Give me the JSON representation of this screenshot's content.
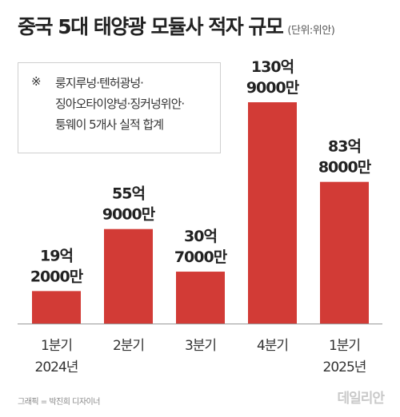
{
  "header": {
    "title": "중국 5대 태양광 모듈사 적자 규모",
    "unit": "(단위:위안)"
  },
  "note": {
    "mark": "※",
    "text": "룽지루넝·텐허광넝·\n징아오타이양넝·징커넝위안·\n퉁웨이 5개사 실적 합계"
  },
  "footer": {
    "credit": "그래픽 = 박진희 디자이너",
    "logo": "데일리안"
  },
  "colors": {
    "bar": "#d23b36",
    "axis": "#999999",
    "label": "#222222"
  },
  "chart_data": {
    "type": "bar",
    "categories": [
      [
        "1분기",
        "2024년"
      ],
      [
        "2분기"
      ],
      [
        "3분기"
      ],
      [
        "4분기"
      ],
      [
        "1분기",
        "2025년"
      ]
    ],
    "values": [
      1920000000,
      5590000000,
      3070000000,
      13090000000,
      8380000000
    ],
    "value_labels": [
      [
        "19억",
        "2000만"
      ],
      [
        "55억",
        "9000만"
      ],
      [
        "30억",
        "7000만"
      ],
      [
        "130억",
        "9000만"
      ],
      [
        "83억",
        "8000만"
      ]
    ],
    "title": "중국 5대 태양광 모듈사 적자 규모",
    "unit": "위안",
    "ylim": [
      0,
      13090000000
    ],
    "grid": false,
    "legend": "none"
  }
}
